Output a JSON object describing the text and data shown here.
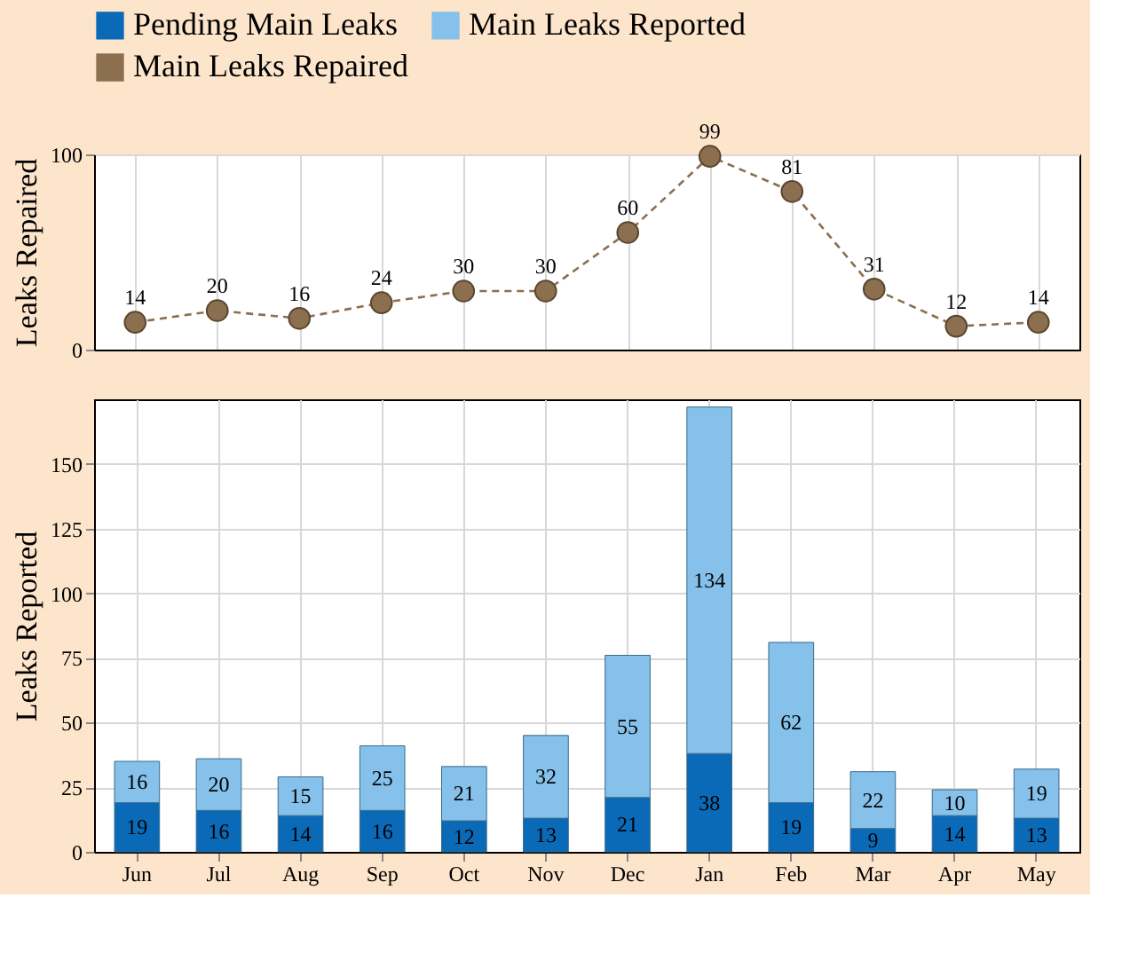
{
  "chart_data": [
    {
      "type": "line",
      "ylabel": "Leaks Repaired",
      "categories": [
        null,
        null,
        null,
        null,
        null,
        null,
        null,
        null,
        null,
        null,
        null,
        null
      ],
      "series": [
        {
          "name": "Main Leaks Repaired",
          "color": "#8b6f4e",
          "values": [
            14,
            20,
            16,
            24,
            30,
            30,
            60,
            99,
            81,
            31,
            12,
            14
          ]
        }
      ],
      "ylim": [
        0,
        100
      ],
      "yticks": [
        0,
        100
      ],
      "grid": true,
      "marker": "circle",
      "line_style": "dashed",
      "data_labels": true,
      "tick_labels": "y",
      "legend": "top"
    },
    {
      "type": "bar",
      "stacked": true,
      "ylabel": "Leaks Reported",
      "categories": [
        "Jun",
        "Jul",
        "Aug",
        "Sep",
        "Oct",
        "Nov",
        "Dec",
        "Jan",
        "Feb",
        "Mar",
        "Apr",
        "May"
      ],
      "series": [
        {
          "name": "Pending Main Leaks",
          "color": "#0a6ab8",
          "values": [
            19,
            16,
            14,
            16,
            12,
            13,
            21,
            38,
            19,
            9,
            14,
            13
          ]
        },
        {
          "name": "Main Leaks Reported",
          "color": "#85c1ea",
          "values": [
            16,
            20,
            15,
            25,
            21,
            32,
            55,
            134,
            62,
            22,
            10,
            19
          ]
        }
      ],
      "ylim": [
        0,
        175
      ],
      "yticks": [
        0,
        25,
        50,
        75,
        100,
        125,
        150
      ],
      "grid": true,
      "data_labels": true,
      "legend": "top"
    }
  ]
}
